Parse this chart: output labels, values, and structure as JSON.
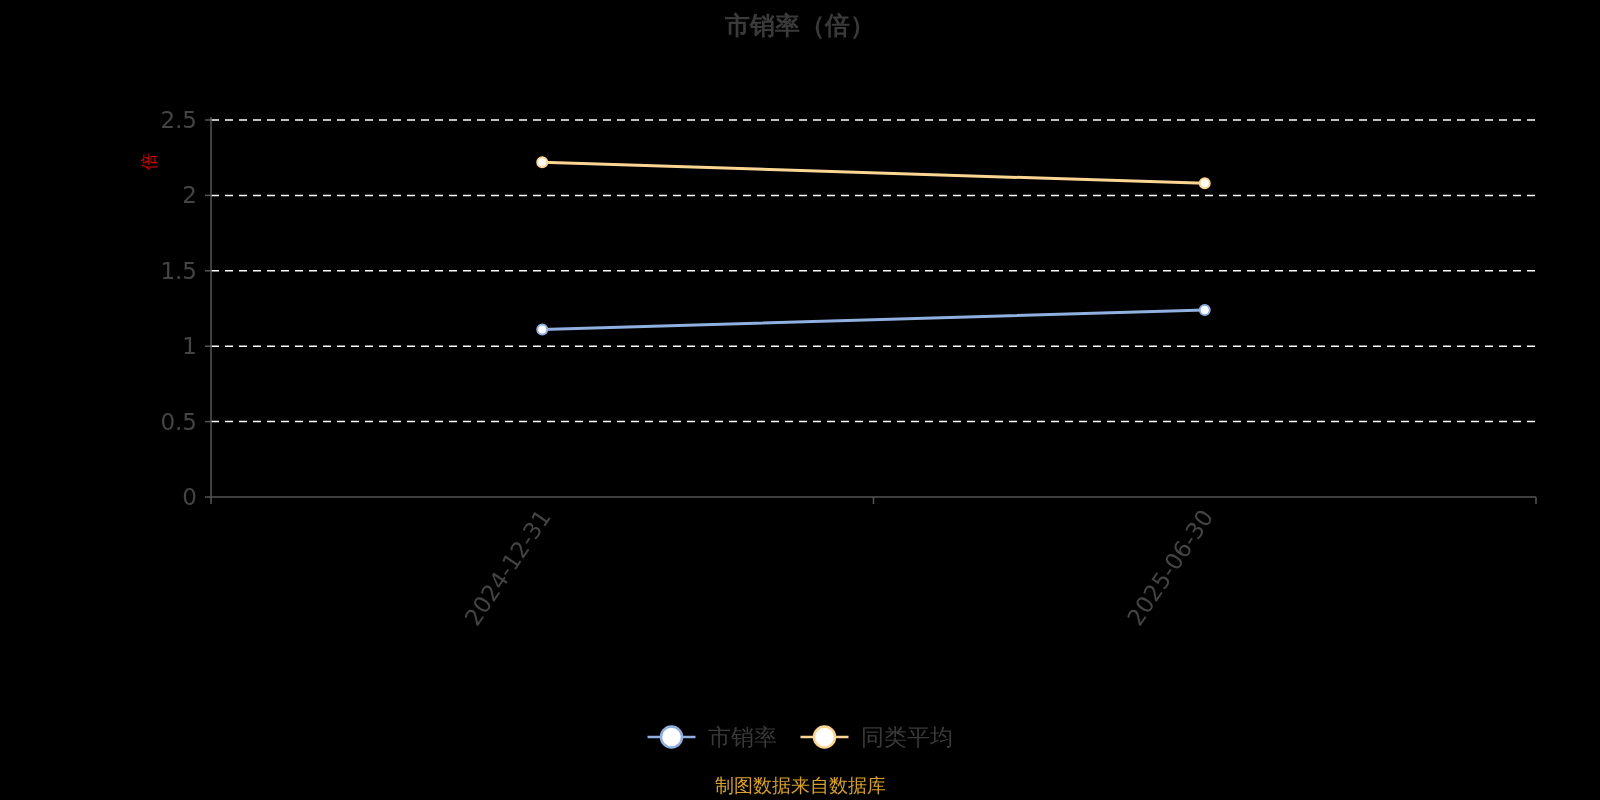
{
  "chart_data": {
    "type": "line",
    "title": "市销率（倍）",
    "ylabel": "倍",
    "categories": [
      "2024-12-31",
      "2025-06-30"
    ],
    "series": [
      {
        "name": "市销率",
        "color": "#8fb0e0",
        "values": [
          1.11,
          1.24
        ]
      },
      {
        "name": "同类平均",
        "color": "#fdd694",
        "values": [
          2.22,
          2.08
        ]
      }
    ],
    "ylim": [
      0,
      2.5
    ],
    "yticks": [
      0,
      0.5,
      1,
      1.5,
      2,
      2.5
    ],
    "grid": "y",
    "legend": "bottom",
    "marker": "circle",
    "line_style": "solid",
    "annotations": [
      "制图数据来自数据库"
    ]
  }
}
